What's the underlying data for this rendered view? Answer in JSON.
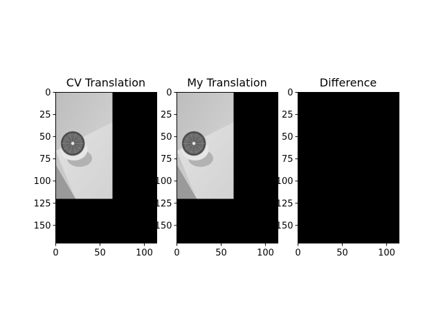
{
  "figure": {
    "background": "#ffffff"
  },
  "panels": [
    {
      "title": "CV Translation"
    },
    {
      "title": "My Translation"
    },
    {
      "title": "Difference"
    }
  ],
  "chart_data": [
    {
      "type": "image",
      "title": "CV Translation",
      "image_size": {
        "width": 114,
        "height": 170
      },
      "xlim": [
        0,
        114
      ],
      "ylim": [
        170,
        0
      ],
      "x_ticks": [
        0,
        50,
        100
      ],
      "y_ticks": [
        0,
        25,
        50,
        75,
        100,
        125,
        150
      ],
      "x_tick_labels": [
        "0",
        "50",
        "100"
      ],
      "y_tick_labels": [
        "0",
        "25",
        "50",
        "75",
        "100",
        "125",
        "150"
      ],
      "content": "grayscale photo of a halved grapefruit translated; black fill elsewhere",
      "photo_region_data_units": {
        "x": [
          0,
          64
        ],
        "y": [
          0,
          120
        ]
      }
    },
    {
      "type": "image",
      "title": "My Translation",
      "image_size": {
        "width": 114,
        "height": 170
      },
      "xlim": [
        0,
        114
      ],
      "ylim": [
        170,
        0
      ],
      "x_ticks": [
        0,
        50,
        100
      ],
      "y_ticks": [
        0,
        25,
        50,
        75,
        100,
        125,
        150
      ],
      "x_tick_labels": [
        "0",
        "50",
        "100"
      ],
      "y_tick_labels": [
        "0",
        "25",
        "50",
        "75",
        "100",
        "125",
        "150"
      ],
      "content": "grayscale photo of a halved grapefruit translated; black fill elsewhere",
      "photo_region_data_units": {
        "x": [
          0,
          64
        ],
        "y": [
          0,
          120
        ]
      }
    },
    {
      "type": "image",
      "title": "Difference",
      "image_size": {
        "width": 114,
        "height": 170
      },
      "xlim": [
        0,
        114
      ],
      "ylim": [
        170,
        0
      ],
      "x_ticks": [
        0,
        50,
        100
      ],
      "y_ticks": [
        0,
        25,
        50,
        75,
        100,
        125,
        150
      ],
      "x_tick_labels": [
        "0",
        "50",
        "100"
      ],
      "y_tick_labels": [
        "0",
        "25",
        "50",
        "75",
        "100",
        "125",
        "150"
      ],
      "content": "all black (zero difference)"
    }
  ]
}
